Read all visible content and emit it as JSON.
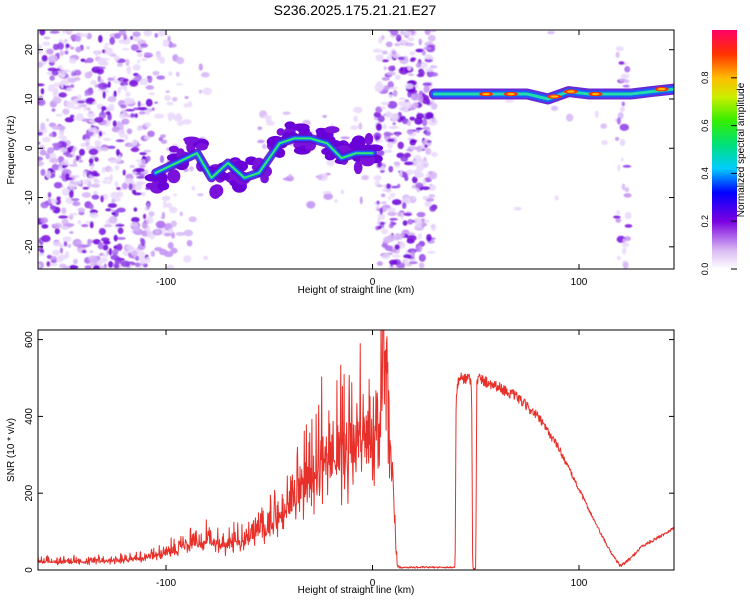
{
  "title": "S236.2025.175.21.21.E27",
  "chart_data": [
    {
      "type": "heatmap",
      "title": "S236.2025.175.21.21.E27",
      "xlabel": "Height of straight line (km)",
      "ylabel": "Frequency (Hz)",
      "xlim": [
        -162,
        146
      ],
      "ylim": [
        -24.5,
        24
      ],
      "xticks": [
        -100,
        0,
        100
      ],
      "yticks": [
        -20,
        -10,
        0,
        10,
        20
      ],
      "colorbar": {
        "label": "Normalized spectral amplitude",
        "range": [
          0,
          1
        ],
        "ticks": [
          "0.0",
          "0.2",
          "0.4",
          "0.6",
          "0.8"
        ]
      },
      "ridge": {
        "segment1": [
          {
            "x": -105,
            "y": -5
          },
          {
            "x": -95,
            "y": -3
          },
          {
            "x": -85,
            "y": -1
          },
          {
            "x": -78,
            "y": -6
          },
          {
            "x": -70,
            "y": -3
          },
          {
            "x": -62,
            "y": -6
          },
          {
            "x": -55,
            "y": -5
          },
          {
            "x": -45,
            "y": 1
          },
          {
            "x": -38,
            "y": 2
          },
          {
            "x": -30,
            "y": 2
          },
          {
            "x": -22,
            "y": 1
          },
          {
            "x": -15,
            "y": -2
          },
          {
            "x": -8,
            "y": -1
          },
          {
            "x": 0,
            "y": -1
          }
        ],
        "segment2": [
          {
            "x": 30,
            "y": 11
          },
          {
            "x": 45,
            "y": 11
          },
          {
            "x": 60,
            "y": 11
          },
          {
            "x": 75,
            "y": 11
          },
          {
            "x": 85,
            "y": 10
          },
          {
            "x": 95,
            "y": 11.5
          },
          {
            "x": 105,
            "y": 11
          },
          {
            "x": 115,
            "y": 11
          },
          {
            "x": 125,
            "y": 11
          },
          {
            "x": 135,
            "y": 11.5
          },
          {
            "x": 146,
            "y": 12
          }
        ]
      }
    },
    {
      "type": "line",
      "xlabel": "Height of straight line (km)",
      "ylabel": "SNR (10 * v/v)",
      "xlim": [
        -162,
        146
      ],
      "ylim": [
        0,
        625
      ],
      "xticks": [
        -100,
        0,
        100
      ],
      "yticks": [
        0,
        200,
        400,
        600
      ],
      "color": "#e8302a",
      "series": [
        {
          "x": [
            -162,
            -140,
            -120,
            -110,
            -100,
            -90,
            -80,
            -70,
            -60,
            -50,
            -40,
            -35,
            -30,
            -25,
            -20,
            -15,
            -10,
            -5,
            -2,
            3,
            5,
            8,
            12,
            15,
            40,
            40.5,
            42,
            47,
            48,
            48.5,
            50,
            50.5,
            51,
            55,
            60,
            70,
            80,
            90,
            100,
            110,
            115,
            120,
            125,
            130,
            140,
            146
          ],
          "y": [
            20,
            20,
            25,
            30,
            40,
            60,
            70,
            60,
            80,
            100,
            150,
            180,
            220,
            260,
            270,
            280,
            300,
            310,
            320,
            350,
            600,
            350,
            10,
            5,
            5,
            460,
            500,
            500,
            480,
            5,
            5,
            480,
            500,
            490,
            480,
            450,
            400,
            320,
            210,
            100,
            50,
            10,
            30,
            60,
            90,
            110
          ]
        }
      ]
    }
  ]
}
